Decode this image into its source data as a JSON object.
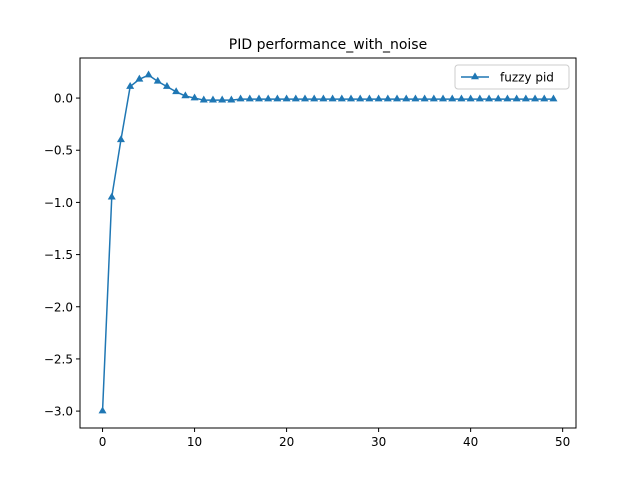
{
  "chart_data": {
    "type": "line",
    "title": "PID performance_with_noise",
    "xlabel": "",
    "ylabel": "",
    "xlim": [
      -2.45,
      51.45
    ],
    "ylim": [
      -3.162,
      0.384
    ],
    "xticks": [
      0,
      10,
      20,
      30,
      40,
      50
    ],
    "yticks": [
      0.0,
      -0.5,
      -1.0,
      -1.5,
      -2.0,
      -2.5,
      -3.0
    ],
    "xtick_labels": [
      "0",
      "10",
      "20",
      "30",
      "40",
      "50"
    ],
    "ytick_labels": [
      "0.0",
      "−0.5",
      "−1.0",
      "−1.5",
      "−2.0",
      "−2.5",
      "−3.0"
    ],
    "grid": false,
    "legend": {
      "position": "top-right",
      "entries": [
        "fuzzy pid"
      ]
    },
    "series": [
      {
        "name": "fuzzy pid",
        "color": "#1f77b4",
        "marker": "triangle-up",
        "x": [
          0,
          1,
          2,
          3,
          4,
          5,
          6,
          7,
          8,
          9,
          10,
          11,
          12,
          13,
          14,
          15,
          16,
          17,
          18,
          19,
          20,
          21,
          22,
          23,
          24,
          25,
          26,
          27,
          28,
          29,
          30,
          31,
          32,
          33,
          34,
          35,
          36,
          37,
          38,
          39,
          40,
          41,
          42,
          43,
          44,
          45,
          46,
          47,
          48,
          49
        ],
        "y": [
          -3.0,
          -0.95,
          -0.4,
          0.11,
          0.18,
          0.22,
          0.16,
          0.11,
          0.06,
          0.02,
          0.0,
          -0.02,
          -0.02,
          -0.02,
          -0.02,
          -0.01,
          -0.01,
          -0.01,
          -0.01,
          -0.01,
          -0.01,
          -0.01,
          -0.01,
          -0.01,
          -0.01,
          -0.01,
          -0.01,
          -0.01,
          -0.01,
          -0.01,
          -0.01,
          -0.01,
          -0.01,
          -0.01,
          -0.01,
          -0.01,
          -0.01,
          -0.01,
          -0.01,
          -0.01,
          -0.01,
          -0.01,
          -0.01,
          -0.01,
          -0.01,
          -0.01,
          -0.01,
          -0.01,
          -0.01,
          -0.01
        ]
      }
    ]
  }
}
